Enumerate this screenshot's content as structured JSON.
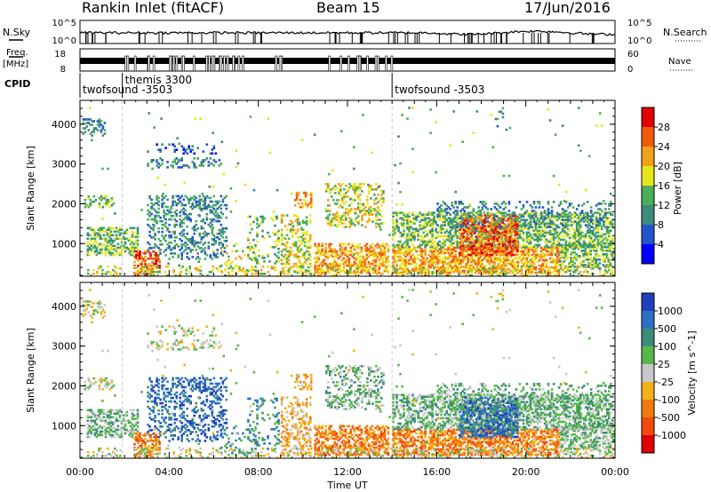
{
  "header": {
    "station": "Rankin Inlet (fitACF)",
    "beam": "Beam 15",
    "date": "17/Jun/2016"
  },
  "aux": {
    "nsky_label": "N.Sky",
    "nsky_ticks": [
      "10^5",
      "10^0"
    ],
    "nsearch_label": "N.Search",
    "nsearch_ticks": [
      "10^5",
      "10^0"
    ],
    "freq_label": "Freq.",
    "freq_unit": "[MHz]",
    "freq_ticks": [
      "18",
      "8"
    ],
    "nave_label": "Nave",
    "nave_ticks": [
      "60",
      "0"
    ],
    "cpid_label": "CPID",
    "cpid_entries": [
      {
        "name": "twofsound -3503",
        "start_hour": 0.0
      },
      {
        "name": "themis 3300",
        "start_hour": 1.9
      },
      {
        "name": "twofsound -3503",
        "start_hour": 14.0
      }
    ]
  },
  "axes": {
    "xlabel": "Time UT",
    "ylabel": "Slant Range [km]",
    "x_ticks": [
      "00:00",
      "04:00",
      "08:00",
      "12:00",
      "16:00",
      "20:00",
      "00:00"
    ],
    "y_ticks": [
      "1000",
      "2000",
      "3000",
      "4000"
    ]
  },
  "chart_data": [
    {
      "type": "heatmap",
      "name": "power",
      "xlim": [
        0,
        24
      ],
      "ylim": [
        180,
        4600
      ],
      "colorbar_label": "Power [dB]",
      "colorbar_ticks": [
        "4",
        "8",
        "12",
        "16",
        "20",
        "24",
        "28"
      ],
      "colorbar_range": [
        0,
        32
      ],
      "colors": [
        "#0000ff",
        "#2255cc",
        "#3f8a7a",
        "#4cae59",
        "#e6e61a",
        "#f2a21a",
        "#f25a0d",
        "#e00000"
      ]
    },
    {
      "type": "heatmap",
      "name": "velocity",
      "xlim": [
        0,
        24
      ],
      "ylim": [
        180,
        4600
      ],
      "colorbar_label": "Velocity [m s^-1]",
      "colorbar_ticks": [
        "1000",
        "500",
        "100",
        "25",
        "-25",
        "-100",
        "-500",
        "-1000"
      ],
      "colors": [
        "#1f3fbf",
        "#2c72c4",
        "#3f8a7a",
        "#57b84a",
        "#c8c8c8",
        "#f2b01a",
        "#f27a0d",
        "#f24a0d",
        "#e00000"
      ]
    }
  ],
  "scatter_regions": [
    {
      "t0": 0.1,
      "t1": 1.1,
      "r0": 3700,
      "r1": 4150,
      "density": 0.35,
      "p": 2,
      "v": 4
    },
    {
      "t0": 3.0,
      "t1": 6.3,
      "r0": 2900,
      "r1": 3150,
      "density": 0.25,
      "p": 2,
      "v": 4
    },
    {
      "t0": 3.0,
      "t1": 6.1,
      "r0": 3250,
      "r1": 3500,
      "density": 0.12,
      "p": 1,
      "v": 4
    },
    {
      "t0": 0.1,
      "t1": 1.5,
      "r0": 1900,
      "r1": 2200,
      "density": 0.4,
      "p": 3,
      "v": 4
    },
    {
      "t0": 0.3,
      "t1": 2.6,
      "r0": 700,
      "r1": 1400,
      "density": 0.45,
      "p": 3,
      "v": 3
    },
    {
      "t0": 3.0,
      "t1": 6.6,
      "r0": 600,
      "r1": 2200,
      "density": 0.28,
      "p": 2,
      "v": 1
    },
    {
      "t0": 2.4,
      "t1": 3.6,
      "r0": 200,
      "r1": 800,
      "density": 0.45,
      "p": 6,
      "v": 6
    },
    {
      "t0": 6.3,
      "t1": 7.6,
      "r0": 250,
      "r1": 1000,
      "density": 0.12,
      "p": 4,
      "v": 2
    },
    {
      "t0": 7.5,
      "t1": 9.0,
      "r0": 400,
      "r1": 1700,
      "density": 0.15,
      "p": 3,
      "v": 2
    },
    {
      "t0": 9.0,
      "t1": 10.3,
      "r0": 250,
      "r1": 1700,
      "density": 0.3,
      "p": 4,
      "v": 5
    },
    {
      "t0": 10.5,
      "t1": 13.8,
      "r0": 250,
      "r1": 1000,
      "density": 0.5,
      "p": 5,
      "v": 6
    },
    {
      "t0": 11.0,
      "t1": 13.6,
      "r0": 1400,
      "r1": 2500,
      "density": 0.3,
      "p": 4,
      "v": 3
    },
    {
      "t0": 9.6,
      "t1": 10.4,
      "r0": 1900,
      "r1": 2300,
      "density": 0.4,
      "p": 5,
      "v": 5
    },
    {
      "t0": 14.0,
      "t1": 21.5,
      "r0": 250,
      "r1": 900,
      "density": 0.55,
      "p": 5,
      "v": 6
    },
    {
      "t0": 14.0,
      "t1": 23.9,
      "r0": 900,
      "r1": 1800,
      "density": 0.45,
      "p": 3,
      "v": 3
    },
    {
      "t0": 17.0,
      "t1": 19.6,
      "r0": 700,
      "r1": 1700,
      "density": 0.5,
      "p": 6,
      "v": 1
    },
    {
      "t0": 16.0,
      "t1": 23.9,
      "r0": 1400,
      "r1": 2050,
      "density": 0.2,
      "p": 2,
      "v": 3
    },
    {
      "t0": 21.5,
      "t1": 23.9,
      "r0": 400,
      "r1": 1000,
      "density": 0.45,
      "p": 3,
      "v": 3
    },
    {
      "t0": 0.0,
      "t1": 23.9,
      "r0": 180,
      "r1": 450,
      "density": 0.2,
      "p": 4,
      "v": 4
    },
    {
      "t0": 18.6,
      "t1": 19.3,
      "r0": 3800,
      "r1": 4500,
      "density": 0.08,
      "p": 2,
      "v": 4
    },
    {
      "t0": 0.0,
      "t1": 23.9,
      "r0": 300,
      "r1": 4400,
      "density": 0.006,
      "p": 3,
      "v": 4
    }
  ]
}
